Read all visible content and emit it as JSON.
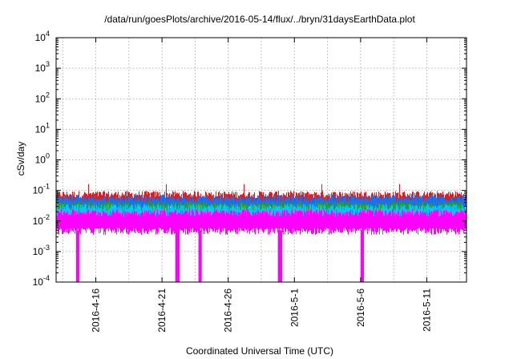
{
  "chart_data": {
    "type": "line",
    "title": "/data/run/goesPlots/archive/2016-05-14/flux/../bryn/31daysEarthData.plot",
    "xlabel": "Coordinated Universal Time (UTC)",
    "ylabel": "cSv/day",
    "y_scale": "log",
    "ylim": [
      0.0001,
      10000
    ],
    "xlim": [
      "2016-04-13",
      "2016-05-14"
    ],
    "grid": true,
    "legend": "none",
    "x_ticks": [
      "2016-4-16",
      "2016-4-21",
      "2016-4-26",
      "2016-5-1",
      "2016-5-6",
      "2016-5-11"
    ],
    "y_ticks": [
      {
        "base": "10",
        "exp": "-4",
        "value": 0.0001
      },
      {
        "base": "10",
        "exp": "-3",
        "value": 0.001
      },
      {
        "base": "10",
        "exp": "-2",
        "value": 0.01
      },
      {
        "base": "10",
        "exp": "-1",
        "value": 0.1
      },
      {
        "base": "10",
        "exp": "0",
        "value": 1
      },
      {
        "base": "10",
        "exp": "1",
        "value": 10
      },
      {
        "base": "10",
        "exp": "2",
        "value": 100
      },
      {
        "base": "10",
        "exp": "3",
        "value": 1000
      },
      {
        "base": "10",
        "exp": "4",
        "value": 10000
      }
    ],
    "series": [
      {
        "color": "#e41a1c",
        "band": [
          0.035,
          0.08
        ],
        "peak": 0.16
      },
      {
        "color": "#1f6fe8",
        "band": [
          0.025,
          0.06
        ]
      },
      {
        "color": "#2ca02c",
        "band": [
          0.018,
          0.035
        ]
      },
      {
        "color": "#00c8ff",
        "band": [
          0.012,
          0.03
        ]
      },
      {
        "color": "#ff00ff",
        "band": [
          0.005,
          0.02
        ]
      }
    ],
    "dropouts": [
      {
        "start": "2016-04-14T12:00",
        "end": "2016-04-14T18:00",
        "to": 0.0001
      },
      {
        "start": "2016-04-22T00:00",
        "end": "2016-04-22T08:00",
        "to": 0.0001
      },
      {
        "start": "2016-04-23T18:00",
        "end": "2016-04-24T00:00",
        "to": 0.0001
      },
      {
        "start": "2016-04-29T18:00",
        "end": "2016-04-30T02:00",
        "to": 0.0001
      },
      {
        "start": "2016-05-06T00:00",
        "end": "2016-05-06T06:00",
        "to": 0.0001
      }
    ]
  }
}
